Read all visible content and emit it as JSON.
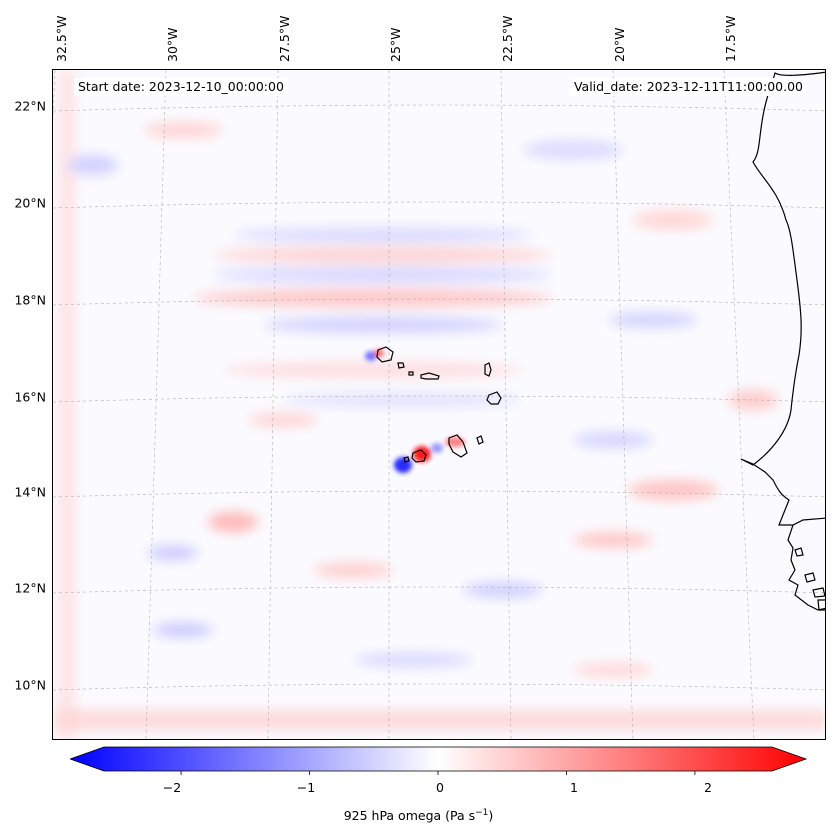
{
  "map": {
    "start_date": "Start date: 2023-12-10_00:00:00",
    "valid_date": "Valid_date: 2023-12-11T11:00:00.00",
    "lat_labels": [
      "22°N",
      "20°N",
      "18°N",
      "16°N",
      "14°N",
      "12°N",
      "10°N"
    ],
    "lon_labels": [
      "32.5°W",
      "30°W",
      "27.5°W",
      "25°W",
      "22.5°W",
      "20°W",
      "17.5°W"
    ],
    "field": "925 hPa omega",
    "colormap": "bwr",
    "colors": {
      "negative": "#0000ff",
      "zero": "#ffffff",
      "positive": "#ff0000",
      "coast": "#000000",
      "grid": "#b0b0b0"
    }
  },
  "colorbar": {
    "ticks": [
      "−2",
      "−1",
      "0",
      "1",
      "2"
    ],
    "tick_values": [
      -2,
      -1,
      0,
      1,
      2
    ],
    "range": [
      -2.6,
      2.6
    ],
    "label": "925 hPa omega (Pa s",
    "label_exp": "−1",
    "label_close": ")"
  }
}
